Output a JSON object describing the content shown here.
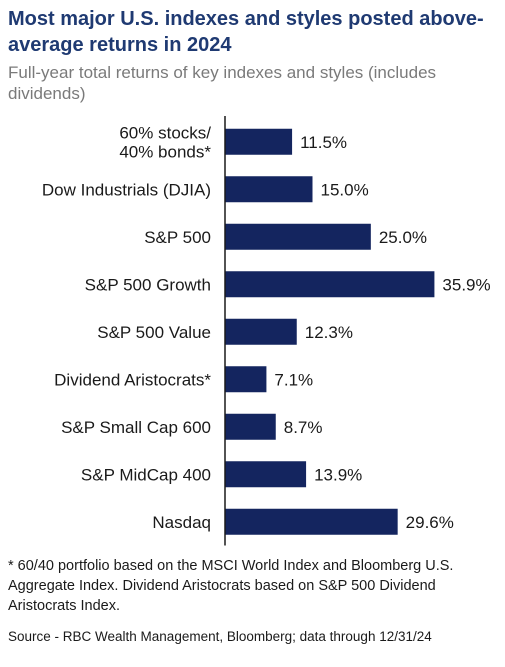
{
  "header": {
    "title": "Most major U.S. indexes and styles posted above-average returns in 2024",
    "subtitle": "Full-year total returns of key indexes and styles (includes dividends)"
  },
  "footnote": "* 60/40 portfolio based on the MSCI World Index and Bloomberg U.S. Aggregate Index. Dividend Aristocrats based on S&P 500 Dividend Aristocrats Index.",
  "source": "Source - RBC Wealth Management, Bloomberg; data through 12/31/24",
  "colors": {
    "bar": "#14255f",
    "axis": "#1a1a1a",
    "title": "#1f3a72",
    "subtitle": "#7a7a7a"
  },
  "chart_data": {
    "type": "bar",
    "orientation": "horizontal",
    "categories": [
      "60% stocks/\n40% bonds*",
      "Dow Industrials (DJIA)",
      "S&P 500",
      "S&P 500 Growth",
      "S&P 500 Value",
      "Dividend Aristocrats*",
      "S&P Small Cap 600",
      "S&P MidCap 400",
      "Nasdaq"
    ],
    "values": [
      11.5,
      15.0,
      25.0,
      35.9,
      12.3,
      7.1,
      8.7,
      13.9,
      29.6
    ],
    "value_labels": [
      "11.5%",
      "15.0%",
      "25.0%",
      "35.9%",
      "12.3%",
      "7.1%",
      "8.7%",
      "13.9%",
      "29.6%"
    ],
    "xlim": [
      0,
      36
    ],
    "grid": false,
    "legend": "none"
  }
}
